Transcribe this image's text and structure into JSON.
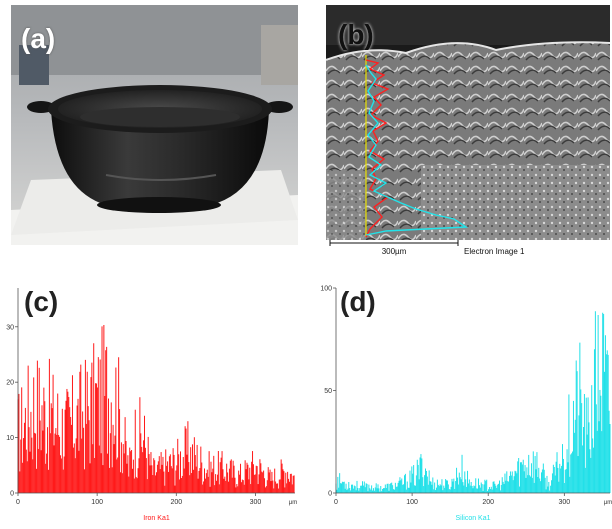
{
  "panels": {
    "a": {
      "label": "(a)"
    },
    "b": {
      "label": "(b)",
      "scale_bar": "300µm",
      "caption": "Electron Image 1"
    },
    "c": {
      "label": "(c)"
    },
    "d": {
      "label": "(d)"
    }
  },
  "chart_data": [
    {
      "type": "bar",
      "panel": "c",
      "series": [
        {
          "name": "Iron Ka1",
          "color": "#ff1a1a"
        }
      ],
      "xlim": [
        0,
        350
      ],
      "ylim": [
        0,
        37
      ],
      "x_ticks": [
        "0",
        "100",
        "200",
        "300"
      ],
      "x_unit": "μm",
      "y_ticks": [
        "0",
        "10",
        "20",
        "30"
      ],
      "profile_envelope": [
        [
          0,
          17
        ],
        [
          20,
          25
        ],
        [
          40,
          22
        ],
        [
          60,
          18
        ],
        [
          80,
          22
        ],
        [
          100,
          26
        ],
        [
          115,
          30
        ],
        [
          125,
          26
        ],
        [
          140,
          7
        ],
        [
          148,
          16
        ],
        [
          158,
          16
        ],
        [
          170,
          6
        ],
        [
          200,
          9
        ],
        [
          215,
          12
        ],
        [
          240,
          7
        ],
        [
          260,
          7
        ],
        [
          280,
          5
        ],
        [
          300,
          8
        ],
        [
          320,
          4
        ],
        [
          340,
          7
        ],
        [
          350,
          4
        ]
      ]
    },
    {
      "type": "bar",
      "panel": "d",
      "series": [
        {
          "name": "Silicon Ka1",
          "color": "#22e0e8"
        }
      ],
      "xlim": [
        0,
        360
      ],
      "ylim": [
        0,
        100
      ],
      "x_ticks": [
        "0",
        "100",
        "200",
        "300"
      ],
      "x_unit": "μm",
      "y_ticks": [
        "0",
        "50",
        "100"
      ],
      "profile_envelope": [
        [
          0,
          10
        ],
        [
          20,
          6
        ],
        [
          60,
          4
        ],
        [
          80,
          6
        ],
        [
          95,
          10
        ],
        [
          105,
          14
        ],
        [
          115,
          22
        ],
        [
          125,
          8
        ],
        [
          150,
          6
        ],
        [
          165,
          18
        ],
        [
          175,
          8
        ],
        [
          210,
          5
        ],
        [
          225,
          10
        ],
        [
          240,
          18
        ],
        [
          255,
          25
        ],
        [
          265,
          20
        ],
        [
          280,
          6
        ],
        [
          300,
          30
        ],
        [
          310,
          55
        ],
        [
          320,
          70
        ],
        [
          330,
          40
        ],
        [
          340,
          80
        ],
        [
          350,
          95
        ],
        [
          360,
          60
        ]
      ]
    }
  ]
}
